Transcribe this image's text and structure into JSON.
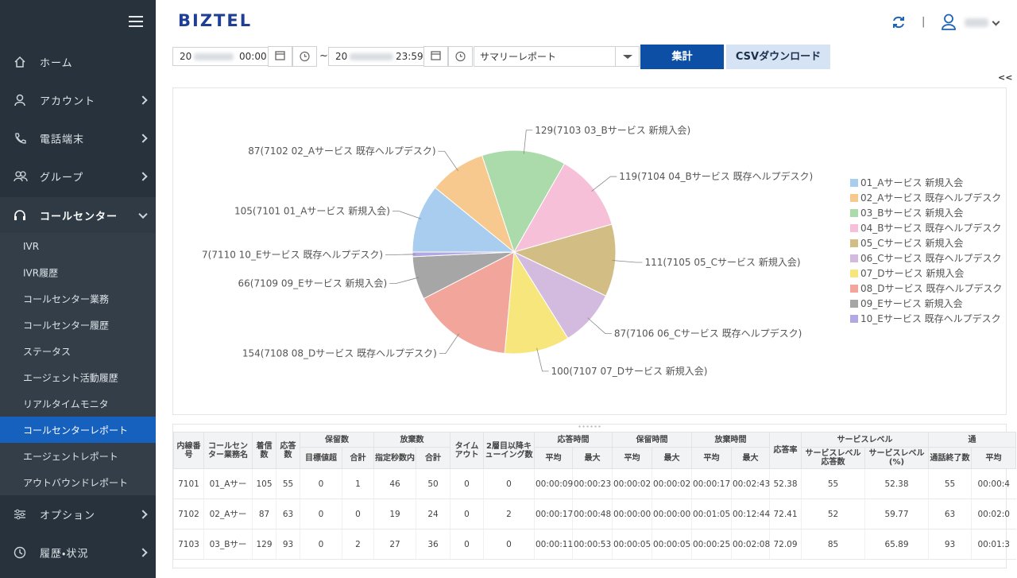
{
  "sidebar": {
    "top": [
      "ホーム",
      "アカウント",
      "電話端末",
      "グループ",
      "コールセンター"
    ],
    "submenu": [
      "IVR",
      "IVR履歴",
      "コールセンター業務",
      "コールセンター履歴",
      "ステータス",
      "エージェント活動履歴",
      "リアルタイムモニタ",
      "コールセンターレポート",
      "エージェントレポート",
      "アウトバウンドレポート"
    ],
    "bottom": [
      "オプション",
      "履歴・状況"
    ]
  },
  "header": {
    "logo": "BIZTEL",
    "separator": "|"
  },
  "filters": {
    "start_date": "20",
    "start_time": "00:00",
    "range_sep": "~",
    "end_date": "20",
    "end_time": "23:59",
    "report": "サマリーレポート",
    "submit": "集計",
    "csv": "CSVダウンロード",
    "collapse": "<<"
  },
  "chart_data": {
    "type": "pie",
    "categories": [
      "01_Aサービス 新規入会",
      "02_Aサービス 既存ヘルプデスク",
      "03_Bサービス 新規入会",
      "04_Bサービス 既存ヘルプデスク",
      "05_Cサービス 新規入会",
      "06_Cサービス 既存ヘルプデスク",
      "07_Dサービス 新規入会",
      "08_Dサービス 既存ヘルプデスク",
      "09_Eサービス 新規入会",
      "10_Eサービス 既存ヘルプデスク"
    ],
    "values": [
      105,
      87,
      129,
      119,
      111,
      87,
      100,
      154,
      66,
      7
    ],
    "value_labels": [
      "105(7101 01_Aサービス 新規入会)",
      "87(7102 02_Aサービス 既存ヘルプデスク)",
      "129(7103 03_Bサービス 新規入会)",
      "119(7104 04_Bサービス 既存ヘルプデスク)",
      "111(7105 05_Cサービス 新規入会)",
      "87(7106 06_Cサービス 既存ヘルプデスク)",
      "100(7107 07_Dサービス 新規入会)",
      "154(7108 08_Dサービス 既存ヘルプデスク)",
      "66(7109 09_Eサービス 新規入会)",
      "7(7110 10_Eサービス 既存ヘルプデスク)"
    ],
    "colors": [
      "#a9cdee",
      "#f8c98e",
      "#acdbab",
      "#f7c0d9",
      "#d2bd84",
      "#d3bbdf",
      "#f6e67c",
      "#f2a59a",
      "#a6a6a6",
      "#b3a9e2"
    ],
    "legend": "right"
  },
  "table": {
    "columns": [
      {
        "label": "内線番号"
      },
      {
        "label": "コールセンター業務名"
      },
      {
        "label": "着信数"
      },
      {
        "label": "応答数"
      },
      {
        "label": "保留数",
        "sub": [
          "目標値超",
          "合計"
        ]
      },
      {
        "label": "放棄数",
        "sub": [
          "指定秒数内",
          "合計"
        ]
      },
      {
        "label": "タイムアウト"
      },
      {
        "label": "2層目以降キューイング数"
      },
      {
        "label": "応答時間",
        "sub": [
          "平均",
          "最大"
        ]
      },
      {
        "label": "保留時間",
        "sub": [
          "平均",
          "最大"
        ]
      },
      {
        "label": "放棄時間",
        "sub": [
          "平均",
          "最大"
        ]
      },
      {
        "label": "応答率"
      },
      {
        "label": "サービスレベル",
        "sub": [
          "サービスレベル応答数",
          "サービスレベル(%)"
        ]
      },
      {
        "label": "通",
        "sub": [
          "通話終了数",
          "平均"
        ]
      }
    ],
    "rows": [
      [
        "7101",
        "01_Aサー",
        "105",
        "55",
        "0",
        "1",
        "46",
        "50",
        "0",
        "0",
        "00:00:09",
        "00:00:23",
        "00:00:02",
        "00:00:02",
        "00:00:17",
        "00:02:43",
        "52.38",
        "55",
        "52.38",
        "55",
        "00:00:4"
      ],
      [
        "7102",
        "02_Aサー",
        "87",
        "63",
        "0",
        "0",
        "19",
        "24",
        "0",
        "2",
        "00:00:17",
        "00:00:48",
        "00:00:00",
        "00:00:00",
        "00:01:05",
        "00:12:44",
        "72.41",
        "52",
        "59.77",
        "63",
        "00:02:0"
      ],
      [
        "7103",
        "03_Bサー",
        "129",
        "93",
        "0",
        "2",
        "27",
        "36",
        "0",
        "0",
        "00:00:11",
        "00:00:53",
        "00:00:05",
        "00:00:05",
        "00:00:25",
        "00:02:08",
        "72.09",
        "85",
        "65.89",
        "93",
        "00:01:3"
      ]
    ]
  }
}
